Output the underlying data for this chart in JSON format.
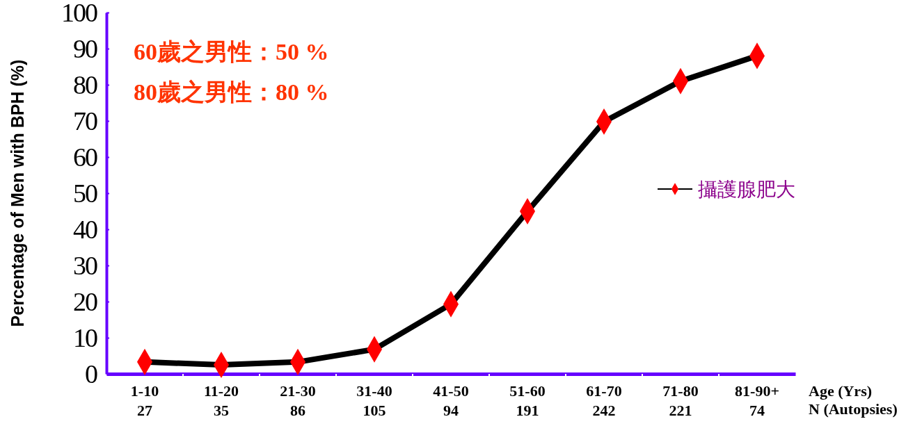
{
  "chart_data": {
    "type": "line",
    "ylabel": "Percentage of Men with BPH (%)",
    "xlabel": "Age (Yrs)\nN (Autopsies)",
    "categories": [
      "1-10\n27",
      "11-20\n35",
      "21-30\n86",
      "31-40\n105",
      "41-50\n94",
      "51-60\n191",
      "61-70\n242",
      "71-80\n221",
      "81-90+\n74"
    ],
    "series": [
      {
        "name": "攝護腺肥大",
        "color": "#000000",
        "colors": [
          "#ff0000",
          "#ff0000",
          "#ff0000",
          "#ff0000",
          "#ff0000",
          "#ff0000",
          "#ff0000",
          "#ff0000",
          "#ff0000"
        ],
        "values": [
          3.3,
          2.5,
          3.3,
          6.8,
          19.3,
          45,
          69.8,
          81,
          88
        ]
      }
    ],
    "ylim": [
      0,
      100
    ],
    "yticks": [
      0,
      10,
      20,
      30,
      40,
      50,
      60,
      70,
      80,
      90,
      100
    ],
    "marker": "diamond",
    "legend": "right",
    "grid": false,
    "annotations": [
      "60歲之男性：50 %",
      "80歲之男性：80 %"
    ]
  }
}
